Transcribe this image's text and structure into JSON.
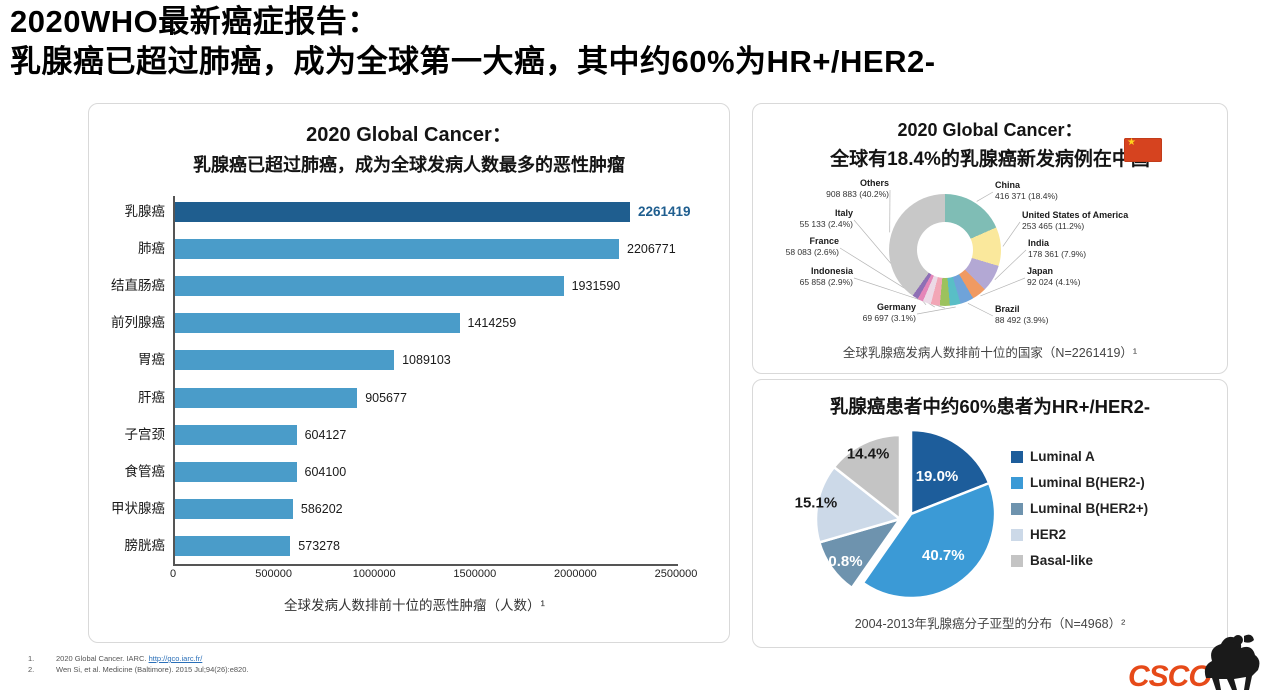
{
  "header": {
    "title_line1": "2020WHO最新癌症报告：",
    "title_line2": "乳腺癌已超过肺癌，成为全球第一大癌，其中约60%为HR+/HER2-"
  },
  "left_card": {
    "title": "2020 Global Cancer：",
    "subtitle": "乳腺癌已超过肺癌，成为全球发病人数最多的恶性肿瘤",
    "caption": "全球发病人数排前十位的恶性肿瘤（人数）¹"
  },
  "donut_card": {
    "title": "2020 Global Cancer：",
    "subtitle": "全球有18.4%的乳腺癌新发病例在中国",
    "flag_icon": "china-flag",
    "caption": "全球乳腺癌发病人数排前十位的国家（N=2261419）¹"
  },
  "pie_card": {
    "title": "乳腺癌患者中约60%患者为HR+/HER2-",
    "caption": "2004-2013年乳腺癌分子亚型的分布（N=4968）²"
  },
  "footer": {
    "references": [
      {
        "num": "1.",
        "text": "2020 Global Cancer. IARC.",
        "link": "http://gco.iarc.fr/"
      },
      {
        "num": "2.",
        "text": "Wen Si, et al. Medicine (Baltimore). 2015 Jul;94(26):e820.",
        "link": ""
      }
    ],
    "logo_text": "CSCO"
  },
  "chart_data": [
    {
      "type": "bar",
      "orientation": "horizontal",
      "title": "2020 Global Cancer：乳腺癌已超过肺癌，成为全球发病人数最多的恶性肿瘤",
      "categories": [
        "乳腺癌",
        "肺癌",
        "结直肠癌",
        "前列腺癌",
        "胃癌",
        "肝癌",
        "子宫颈",
        "食管癌",
        "甲状腺癌",
        "膀胱癌"
      ],
      "values": [
        2261419,
        2206771,
        1931590,
        1414259,
        1089103,
        905677,
        604127,
        604100,
        586202,
        573278
      ],
      "xlabel": "全球发病人数排前十位的恶性肿瘤（人数）",
      "xlim": [
        0,
        2500000
      ],
      "xticks": [
        0,
        500000,
        1000000,
        1500000,
        2000000,
        2500000
      ],
      "grid": false,
      "highlight_index": 0,
      "highlight_color": "#1f5e8f",
      "bar_color": "#4a9cc9"
    },
    {
      "type": "pie",
      "subtype": "donut",
      "title": "全球乳腺癌发病人数排前十位的国家 (N=2261419)",
      "slices": [
        {
          "label": "China",
          "detail": "416 371 (18.4%)",
          "pct": 18.4,
          "color": "#7fbdb5"
        },
        {
          "label": "United States of America",
          "detail": "253 465 (11.2%)",
          "pct": 11.2,
          "color": "#fae89c"
        },
        {
          "label": "India",
          "detail": "178 361 (7.9%)",
          "pct": 7.9,
          "color": "#b3a8d4"
        },
        {
          "label": "Japan",
          "detail": "92 024 (4.1%)",
          "pct": 4.1,
          "color": "#f09a62"
        },
        {
          "label": "Brazil",
          "detail": "88 492 (3.9%)",
          "pct": 3.9,
          "color": "#6fa3d9"
        },
        {
          "label": "Germany",
          "detail": "69 697 (3.1%)",
          "pct": 3.1,
          "color": "#59bec6"
        },
        {
          "label": "Indonesia",
          "detail": "65 858 (2.9%)",
          "pct": 2.9,
          "color": "#9cc25d"
        },
        {
          "label": "France",
          "detail": "58 083 (2.6%)",
          "pct": 2.6,
          "color": "#f2a6b6"
        },
        {
          "label": "Italy",
          "detail": "55 133 (2.4%)",
          "pct": 2.4,
          "color": "#ecd9e6"
        },
        {
          "label": "",
          "detail": "",
          "pct": 1.6,
          "color": "#e585b8"
        },
        {
          "label": "",
          "detail": "",
          "pct": 1.7,
          "color": "#8e6fb5"
        },
        {
          "label": "Others",
          "detail": "908 883 (40.2%)",
          "pct": 40.2,
          "color": "#c8c8c8"
        }
      ]
    },
    {
      "type": "pie",
      "title": "2004-2013年乳腺癌分子亚型的分布 (N=4968)",
      "legend_position": "right",
      "slices": [
        {
          "label": "Luminal A",
          "pct": 19.0,
          "color": "#1d5d9b"
        },
        {
          "label": "Luminal B(HER2-)",
          "pct": 40.7,
          "color": "#3b9ad6"
        },
        {
          "label": "Luminal B(HER2+)",
          "pct": 10.8,
          "color": "#6e93ae"
        },
        {
          "label": "HER2",
          "pct": 15.1,
          "color": "#ccd9e8"
        },
        {
          "label": "Basal-like",
          "pct": 14.4,
          "color": "#c4c4c4"
        }
      ]
    }
  ]
}
